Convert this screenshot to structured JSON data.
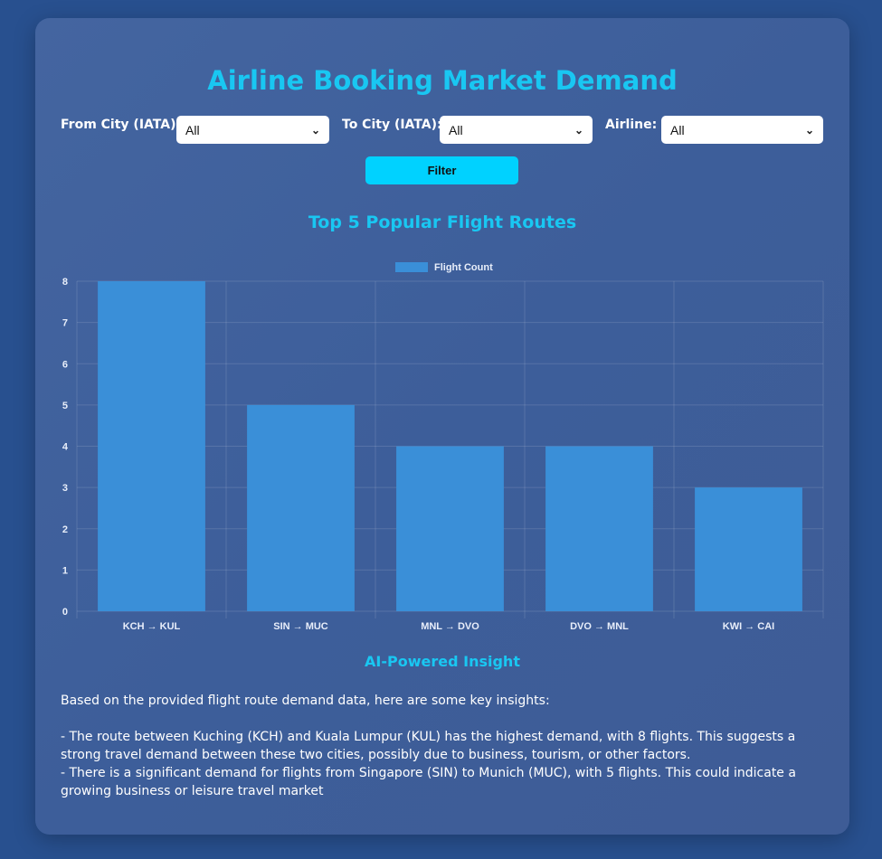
{
  "header": {
    "title": "Airline Booking Market Demand"
  },
  "filters": {
    "from_label": "From City (IATA):",
    "from_value": "All",
    "to_label": "To City (IATA):",
    "to_value": "All",
    "airline_label": "Airline:",
    "airline_value": "All",
    "filter_button": "Filter"
  },
  "chart_section": {
    "heading": "Top 5 Popular Flight Routes"
  },
  "chart_data": {
    "type": "bar",
    "categories": [
      "KCH → KUL",
      "SIN → MUC",
      "MNL → DVO",
      "DVO → MNL",
      "KWI → CAI"
    ],
    "series": [
      {
        "name": "Flight Count",
        "values": [
          8,
          5,
          4,
          4,
          3
        ],
        "color": "#3a8fd8"
      }
    ],
    "ylim": [
      0,
      8
    ],
    "yticks": [
      0,
      1,
      2,
      3,
      4,
      5,
      6,
      7,
      8
    ],
    "grid": true,
    "legend": "top-center"
  },
  "insight": {
    "heading": "AI-Powered Insight",
    "intro": "Based on the provided flight route demand data, here are some key insights:",
    "points": [
      "- The route between Kuching (KCH) and Kuala Lumpur (KUL) has the highest demand, with 8 flights. This suggests a strong travel demand between these two cities, possibly due to business, tourism, or other factors.",
      "- There is a significant demand for flights from Singapore (SIN) to Munich (MUC), with 5 flights. This could indicate a growing business or leisure travel market"
    ]
  }
}
